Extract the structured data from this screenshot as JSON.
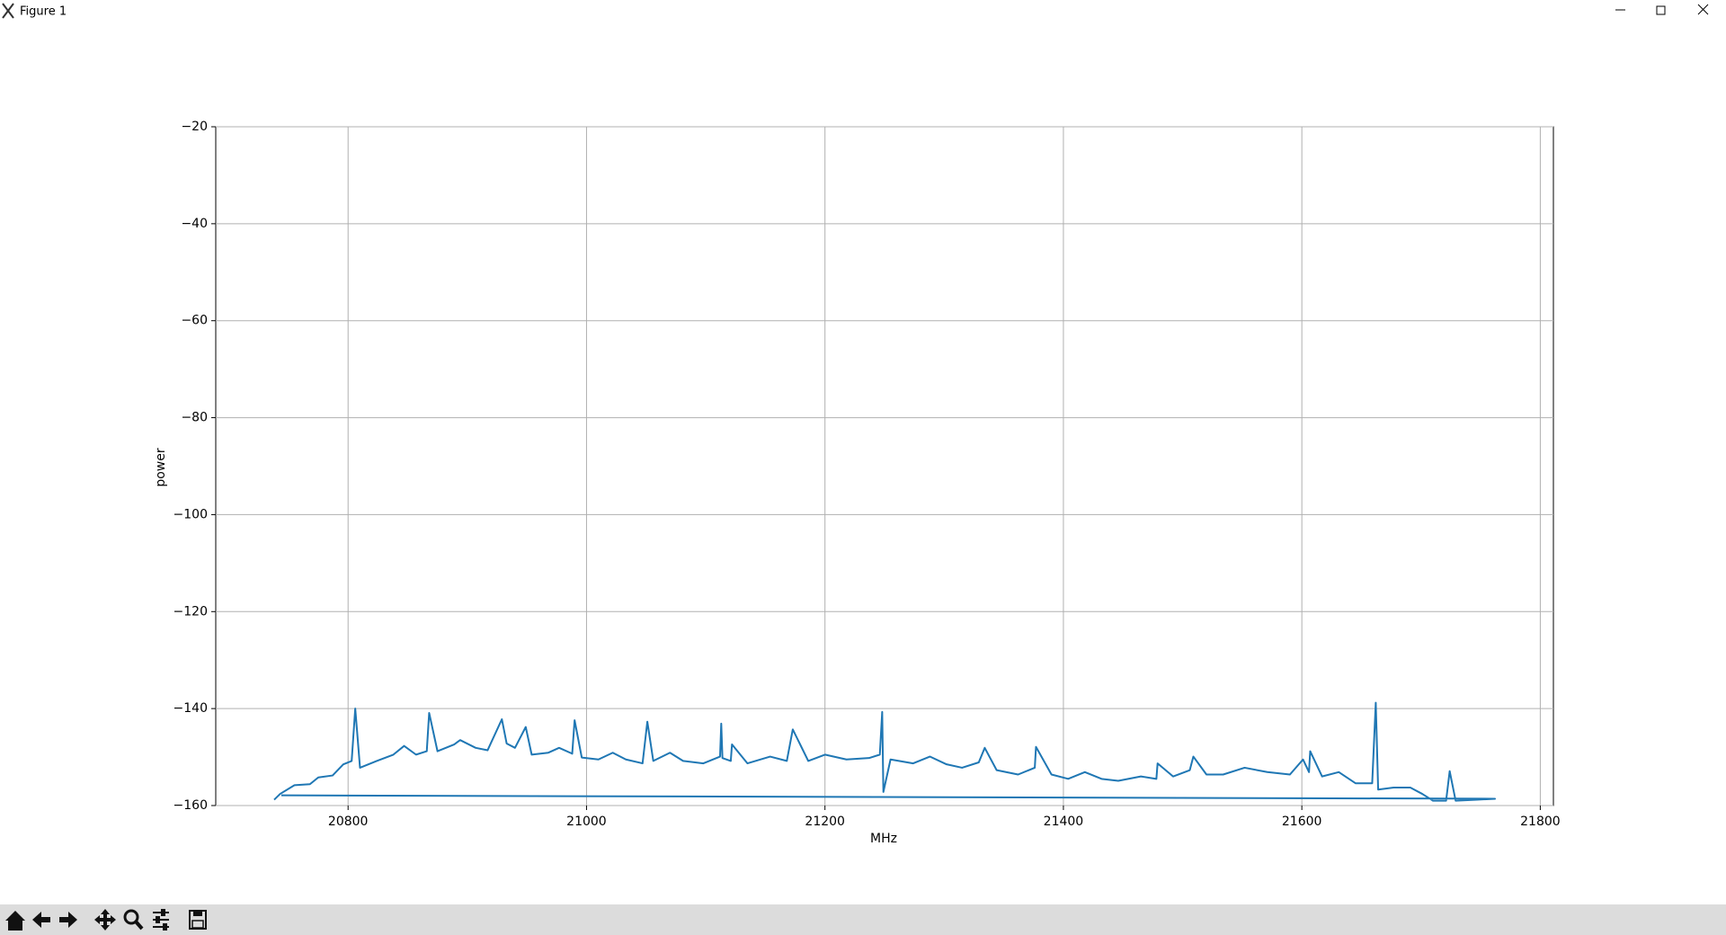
{
  "window": {
    "title": "Figure 1"
  },
  "chart_data": {
    "type": "line",
    "xlabel": "MHz",
    "ylabel": "power",
    "grid": true,
    "xlim": [
      20689,
      21811
    ],
    "xticks": [
      20800,
      21000,
      21200,
      21400,
      21600,
      21800
    ],
    "ylim": [
      -160,
      -20
    ],
    "yticks": [
      {
        "value": -160,
        "label": "−160"
      },
      {
        "value": -140,
        "label": "−140"
      },
      {
        "value": -120,
        "label": "−120"
      },
      {
        "value": -100,
        "label": "−100"
      },
      {
        "value": -80,
        "label": "−80"
      },
      {
        "value": -60,
        "label": "−60"
      },
      {
        "value": -40,
        "label": "−40"
      },
      {
        "value": -20,
        "label": "−20"
      }
    ],
    "x": [
      20738,
      20743,
      20755,
      20768,
      20775,
      20787,
      20796,
      20803,
      20806,
      20810,
      20824,
      20838,
      20847,
      20857,
      20866,
      20868,
      20875,
      20889,
      20894,
      20907,
      20917,
      20929,
      20933,
      20940,
      20949,
      20954,
      20968,
      20977,
      20988,
      20990,
      20996,
      21010,
      21022,
      21033,
      21047,
      21051,
      21056,
      21070,
      21081,
      21098,
      21112,
      21113,
      21114,
      21121,
      21122,
      21135,
      21154,
      21168,
      21173,
      21186,
      21200,
      21218,
      21237,
      21246,
      21248,
      21249,
      21255,
      21274,
      21288,
      21302,
      21315,
      21329,
      21334,
      21344,
      21362,
      21376,
      21377,
      21390,
      21404,
      21418,
      21432,
      21446,
      21465,
      21478,
      21479,
      21492,
      21506,
      21509,
      21520,
      21534,
      21552,
      21571,
      21590,
      21601,
      21606,
      21607,
      21617,
      21631,
      21645,
      21659,
      21662,
      21664,
      21677,
      21691,
      21701,
      21710,
      21721,
      21724,
      21729,
      21747,
      21762,
      20744
    ],
    "series": [
      {
        "color": "#1f77b4",
        "values": [
          -158.8,
          -157.6,
          -155.8,
          -155.6,
          -154.2,
          -153.8,
          -151.5,
          -150.8,
          -140,
          -152.2,
          -150.8,
          -149.5,
          -147.7,
          -149.5,
          -148.8,
          -140.9,
          -148.8,
          -147.4,
          -146.5,
          -148.1,
          -148.6,
          -142.2,
          -147.2,
          -148.1,
          -143.8,
          -149.5,
          -149.1,
          -148.1,
          -149.3,
          -142.4,
          -150.1,
          -150.5,
          -149.1,
          -150.5,
          -151.3,
          -142.7,
          -150.8,
          -149.1,
          -150.8,
          -151.3,
          -149.9,
          -143.1,
          -150.2,
          -150.8,
          -147.4,
          -151.3,
          -149.9,
          -150.8,
          -144.3,
          -150.8,
          -149.5,
          -150.5,
          -150.2,
          -149.5,
          -140.7,
          -157.2,
          -150.5,
          -151.3,
          -149.9,
          -151.5,
          -152.2,
          -151.1,
          -148.1,
          -152.7,
          -153.6,
          -152.2,
          -147.9,
          -153.6,
          -154.5,
          -153.1,
          -154.5,
          -154.9,
          -154.0,
          -154.5,
          -151.3,
          -154.0,
          -152.7,
          -149.9,
          -153.6,
          -153.6,
          -152.2,
          -153.1,
          -153.6,
          -150.5,
          -153.1,
          -148.8,
          -154.0,
          -153.1,
          -155.4,
          -155.4,
          -138.8,
          -156.7,
          -156.3,
          -156.3,
          -157.6,
          -159.0,
          -159.0,
          -152.9,
          -159.0,
          -158.8,
          -158.6,
          -157.9
        ]
      }
    ]
  }
}
